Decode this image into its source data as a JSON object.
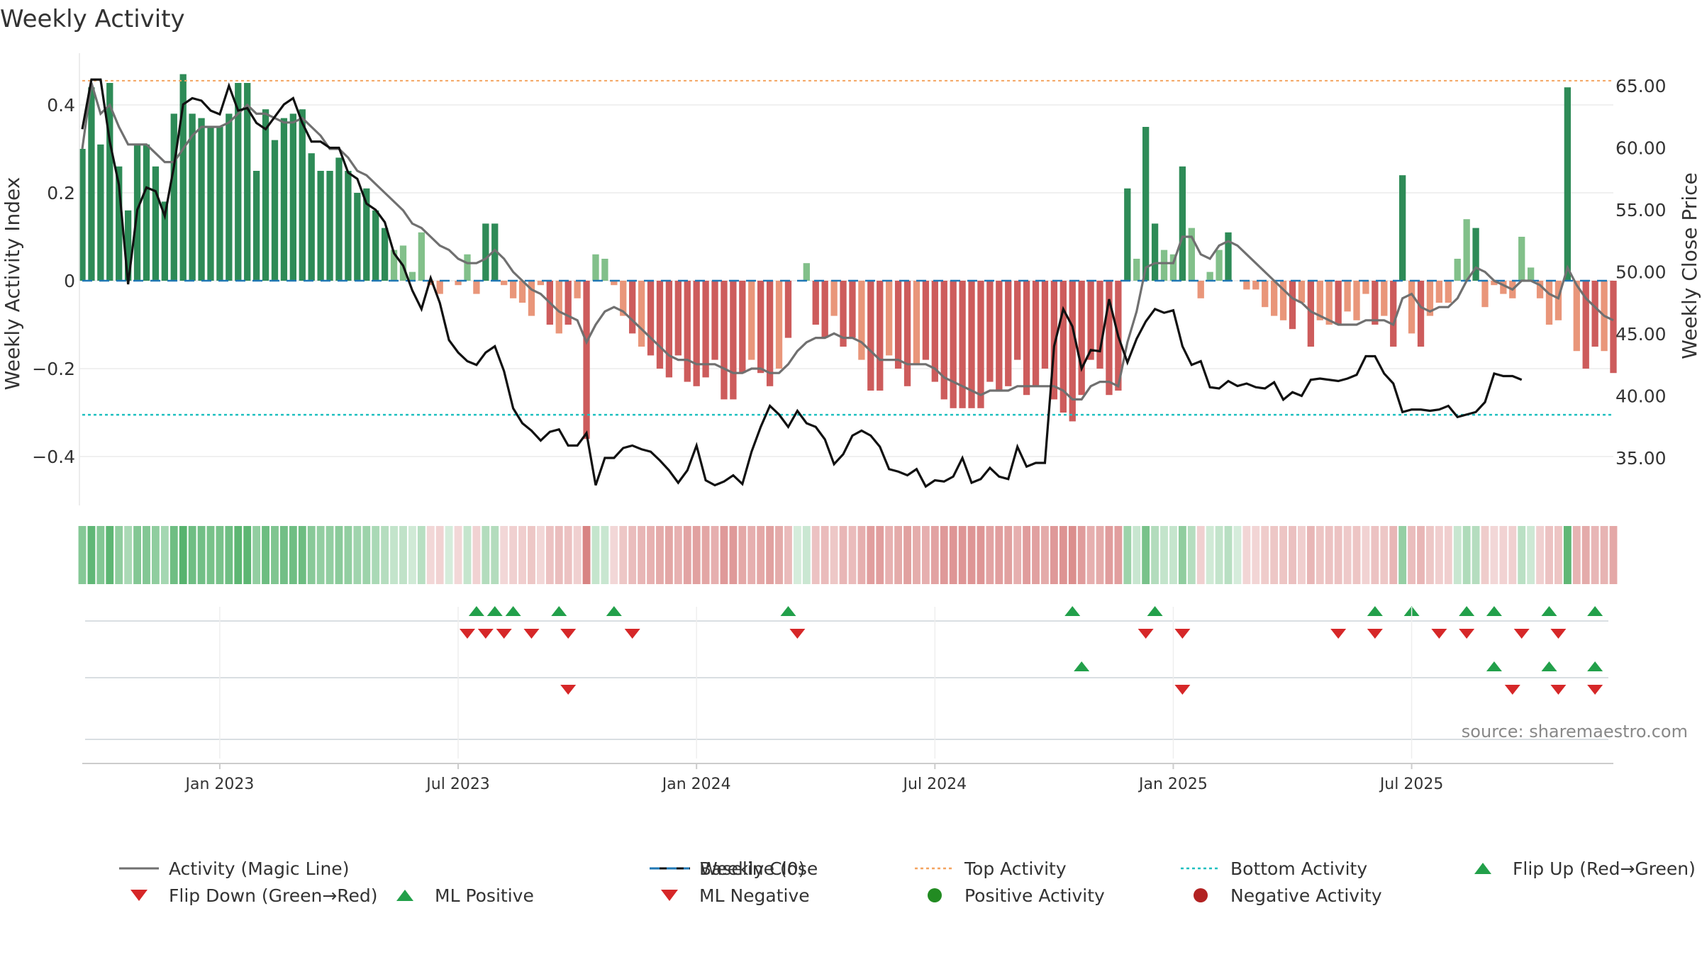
{
  "title": "Weekly Activity",
  "source": "source: sharemaestro.com",
  "chart_data": {
    "type": "bar",
    "title": "Weekly Activity",
    "ylabel": "Weekly Activity Index",
    "y2label": "Weekly Close Price",
    "ylim": [
      -0.5,
      0.5
    ],
    "y2lim": [
      30.0,
      66.5
    ],
    "yticks": [
      {
        "v": 0.4,
        "label": "0.4"
      },
      {
        "v": 0.2,
        "label": "0.2"
      },
      {
        "v": 0,
        "label": "0"
      },
      {
        "v": -0.2,
        "label": "−0.2"
      },
      {
        "v": -0.4,
        "label": "−0.4"
      }
    ],
    "y2ticks": [
      "65.00",
      "60.00",
      "55.00",
      "50.00",
      "45.00",
      "40.00",
      "35.00"
    ],
    "x_labels": [
      {
        "week": 15,
        "label": "Jan 2023"
      },
      {
        "week": 41,
        "label": "Jul 2023"
      },
      {
        "week": 67,
        "label": "Jan 2024"
      },
      {
        "week": 93,
        "label": "Jul 2024"
      },
      {
        "week": 119,
        "label": "Jan 2025"
      },
      {
        "week": 145,
        "label": "Jul 2025"
      }
    ],
    "top_activity": 0.455,
    "bottom_activity": -0.305,
    "activity_values": [
      0.3,
      0.44,
      0.31,
      0.45,
      0.26,
      0.16,
      0.31,
      0.31,
      0.26,
      0.18,
      0.38,
      0.47,
      0.38,
      0.37,
      0.35,
      0.35,
      0.38,
      0.45,
      0.45,
      0.25,
      0.39,
      0.32,
      0.37,
      0.38,
      0.39,
      0.29,
      0.25,
      0.25,
      0.28,
      0.25,
      0.2,
      0.21,
      0.16,
      0.12,
      0.07,
      0.08,
      0.02,
      0.11,
      -0.01,
      -0.03,
      0.0,
      -0.01,
      0.06,
      -0.03,
      0.13,
      0.13,
      -0.01,
      -0.04,
      -0.05,
      -0.08,
      -0.01,
      -0.1,
      -0.12,
      -0.1,
      -0.04,
      -0.36,
      0.06,
      0.05,
      -0.01,
      -0.08,
      -0.12,
      -0.15,
      -0.17,
      -0.2,
      -0.22,
      -0.17,
      -0.23,
      -0.24,
      -0.22,
      -0.18,
      -0.27,
      -0.27,
      -0.21,
      -0.18,
      -0.21,
      -0.24,
      -0.2,
      -0.13,
      0.0,
      0.04,
      -0.1,
      -0.13,
      -0.08,
      -0.15,
      -0.13,
      -0.18,
      -0.25,
      -0.25,
      -0.17,
      -0.2,
      -0.24,
      -0.19,
      -0.18,
      -0.23,
      -0.27,
      -0.29,
      -0.29,
      -0.29,
      -0.29,
      -0.23,
      -0.25,
      -0.24,
      -0.18,
      -0.26,
      -0.24,
      -0.2,
      -0.27,
      -0.3,
      -0.32,
      -0.26,
      -0.18,
      -0.2,
      -0.26,
      -0.25,
      0.21,
      0.05,
      0.35,
      0.13,
      0.07,
      0.06,
      0.26,
      0.12,
      -0.04,
      0.02,
      0.07,
      0.11,
      0.0,
      -0.02,
      -0.02,
      -0.06,
      -0.08,
      -0.09,
      -0.11,
      -0.05,
      -0.15,
      -0.09,
      -0.1,
      -0.1,
      -0.07,
      -0.09,
      -0.03,
      -0.1,
      -0.08,
      -0.15,
      0.24,
      -0.12,
      -0.15,
      -0.08,
      -0.05,
      -0.05,
      0.05,
      0.14,
      0.12,
      -0.06,
      -0.01,
      -0.03,
      -0.04,
      0.1,
      0.03,
      -0.04,
      -0.1,
      -0.09,
      0.44,
      -0.16,
      -0.2,
      -0.15,
      -0.16,
      -0.21
    ],
    "magic_line": [
      0.3,
      0.45,
      0.38,
      0.4,
      0.35,
      0.31,
      0.31,
      0.31,
      0.29,
      0.27,
      0.27,
      0.3,
      0.33,
      0.35,
      0.35,
      0.35,
      0.36,
      0.38,
      0.4,
      0.38,
      0.38,
      0.37,
      0.36,
      0.36,
      0.37,
      0.35,
      0.33,
      0.3,
      0.3,
      0.28,
      0.25,
      0.24,
      0.22,
      0.2,
      0.18,
      0.16,
      0.13,
      0.12,
      0.1,
      0.08,
      0.07,
      0.05,
      0.04,
      0.04,
      0.05,
      0.07,
      0.05,
      0.02,
      0.0,
      -0.02,
      -0.03,
      -0.05,
      -0.07,
      -0.08,
      -0.09,
      -0.14,
      -0.1,
      -0.07,
      -0.06,
      -0.07,
      -0.09,
      -0.11,
      -0.13,
      -0.15,
      -0.17,
      -0.18,
      -0.18,
      -0.19,
      -0.19,
      -0.19,
      -0.2,
      -0.21,
      -0.21,
      -0.2,
      -0.2,
      -0.21,
      -0.21,
      -0.19,
      -0.16,
      -0.14,
      -0.13,
      -0.13,
      -0.12,
      -0.13,
      -0.13,
      -0.14,
      -0.16,
      -0.18,
      -0.18,
      -0.18,
      -0.19,
      -0.19,
      -0.19,
      -0.2,
      -0.22,
      -0.23,
      -0.24,
      -0.25,
      -0.26,
      -0.25,
      -0.25,
      -0.25,
      -0.24,
      -0.24,
      -0.24,
      -0.24,
      -0.24,
      -0.25,
      -0.27,
      -0.27,
      -0.24,
      -0.23,
      -0.23,
      -0.24,
      -0.14,
      -0.07,
      0.03,
      0.04,
      0.04,
      0.04,
      0.1,
      0.1,
      0.06,
      0.05,
      0.08,
      0.09,
      0.08,
      0.06,
      0.04,
      0.02,
      0.0,
      -0.02,
      -0.04,
      -0.05,
      -0.07,
      -0.08,
      -0.09,
      -0.1,
      -0.1,
      -0.1,
      -0.09,
      -0.09,
      -0.09,
      -0.1,
      -0.04,
      -0.03,
      -0.06,
      -0.07,
      -0.06,
      -0.06,
      -0.04,
      0.0,
      0.03,
      0.02,
      0.0,
      -0.01,
      -0.02,
      0.0,
      0.0,
      -0.01,
      -0.03,
      -0.04,
      0.03,
      -0.01,
      -0.04,
      -0.06,
      -0.08,
      -0.09
    ],
    "weekly_close": [
      61.5,
      65.5,
      65.5,
      60.5,
      57.0,
      49.0,
      55.0,
      56.8,
      56.5,
      54.5,
      58.5,
      63.5,
      64.0,
      63.8,
      63.0,
      62.7,
      65.0,
      63.0,
      63.2,
      62.0,
      61.5,
      62.5,
      63.5,
      64.0,
      62.0,
      60.5,
      60.5,
      60.0,
      60.0,
      58.0,
      57.5,
      55.5,
      55.0,
      54.0,
      51.5,
      50.5,
      48.5,
      47.0,
      49.5,
      47.5,
      44.5,
      43.5,
      42.8,
      42.5,
      43.5,
      44.0,
      42.0,
      39.0,
      37.8,
      37.2,
      36.4,
      37.1,
      37.3,
      36.0,
      36.0,
      37.0,
      32.8,
      35.0,
      35.0,
      35.8,
      36.0,
      35.7,
      35.5,
      34.8,
      34.0,
      33.0,
      34.0,
      36.0,
      33.2,
      32.8,
      33.1,
      33.6,
      32.9,
      35.5,
      37.5,
      39.2,
      38.5,
      37.5,
      38.8,
      37.8,
      37.5,
      36.5,
      34.5,
      35.3,
      36.8,
      37.2,
      36.8,
      35.9,
      34.1,
      33.9,
      33.6,
      34.1,
      32.7,
      33.2,
      33.1,
      33.5,
      35.0,
      33.0,
      33.3,
      34.2,
      33.5,
      33.3,
      35.9,
      34.3,
      34.6,
      34.6,
      44.0,
      47.0,
      45.6,
      42.2,
      43.7,
      43.6,
      47.8,
      44.8,
      42.7,
      44.6,
      46.0,
      47.0,
      46.7,
      46.9,
      44.0,
      42.5,
      42.8,
      40.7,
      40.6,
      41.2,
      40.8,
      41.0,
      40.7,
      40.6,
      41.1,
      39.7,
      40.3,
      40.0,
      41.3,
      41.4,
      41.3,
      41.2,
      41.4,
      41.7,
      43.2,
      43.2,
      41.8,
      41.0,
      38.7,
      38.9,
      38.9,
      38.8,
      38.9,
      39.2,
      38.3,
      38.5,
      38.7,
      39.5,
      41.8,
      41.6,
      41.6,
      41.3
    ],
    "flip_up": [
      43,
      45,
      47,
      52,
      58,
      77,
      108,
      117,
      141,
      145,
      151,
      154,
      160,
      165
    ],
    "flip_down": [
      42,
      44,
      46,
      49,
      53,
      60,
      78,
      116,
      120,
      137,
      141,
      148,
      151,
      157,
      161
    ],
    "ml_positive": [
      109,
      154,
      160,
      165
    ],
    "ml_negative": [
      53,
      120,
      156,
      161,
      165
    ]
  },
  "legend": [
    {
      "key": "magic",
      "label": "Activity (Magic Line)"
    },
    {
      "key": "close",
      "label": "Weekly Close"
    },
    {
      "key": "baseline",
      "label": "Baseline (0)"
    },
    {
      "key": "top",
      "label": "Top Activity"
    },
    {
      "key": "bottom",
      "label": "Bottom Activity"
    },
    {
      "key": "flipup",
      "label": "Flip Up (Red→Green)"
    },
    {
      "key": "flipdown",
      "label": "Flip Down (Green→Red)"
    },
    {
      "key": "mlpos",
      "label": "ML Positive"
    },
    {
      "key": "mlneg",
      "label": "ML Negative"
    },
    {
      "key": "posact",
      "label": "Positive Activity"
    },
    {
      "key": "negact",
      "label": "Negative Activity"
    }
  ],
  "colors": {
    "green_dark": "#2e8b57",
    "green_light": "#82c08a",
    "red_dark": "#cd5c5c",
    "red_light": "#e9967a",
    "magic": "#707070",
    "close": "#111111",
    "baseline": "#1f77b4",
    "top": "#f4a460",
    "bottom": "#20c0c0",
    "marker_up": "#22a04a",
    "marker_down": "#d62728",
    "pos_dot": "#228b22",
    "neg_dot": "#b22222"
  }
}
